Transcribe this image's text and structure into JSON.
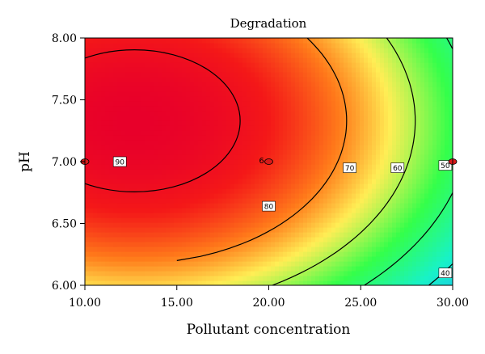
{
  "chart_data": {
    "type": "heatmap",
    "subtype": "contour",
    "title": "Degradation",
    "xlabel": "Pollutant concentration",
    "ylabel": "pH",
    "xlim": [
      10.0,
      30.0
    ],
    "ylim": [
      6.0,
      8.0
    ],
    "xticks": [
      "10.00",
      "15.00",
      "20.00",
      "25.00",
      "30.00"
    ],
    "yticks": [
      "6.00",
      "6.50",
      "7.00",
      "7.50",
      "8.00"
    ],
    "colormap": [
      "#e8002a",
      "#f41818",
      "#ff7a1a",
      "#ffee55",
      "#34ff4a",
      "#18f2c8",
      "#1aa8ff"
    ],
    "contour_levels": [
      {
        "value": 90,
        "label": "90",
        "label_x": 11.9,
        "label_y": 7.0
      },
      {
        "value": 80,
        "label": "80",
        "label_x": 20.0,
        "label_y": 6.64
      },
      {
        "value": 70,
        "label": "70",
        "label_x": 24.4,
        "label_y": 6.95
      },
      {
        "value": 60,
        "label": "60",
        "label_x": 27.0,
        "label_y": 6.95
      },
      {
        "value": 50,
        "label": "50",
        "label_x": 29.6,
        "label_y": 6.97
      },
      {
        "value": 40,
        "label": "40",
        "label_x": 29.6,
        "label_y": 6.1
      }
    ],
    "design_points": [
      {
        "x": 10.0,
        "y": 7.0
      },
      {
        "x": 20.0,
        "y": 7.0,
        "label": "6"
      },
      {
        "x": 30.0,
        "y": 7.0
      }
    ]
  }
}
